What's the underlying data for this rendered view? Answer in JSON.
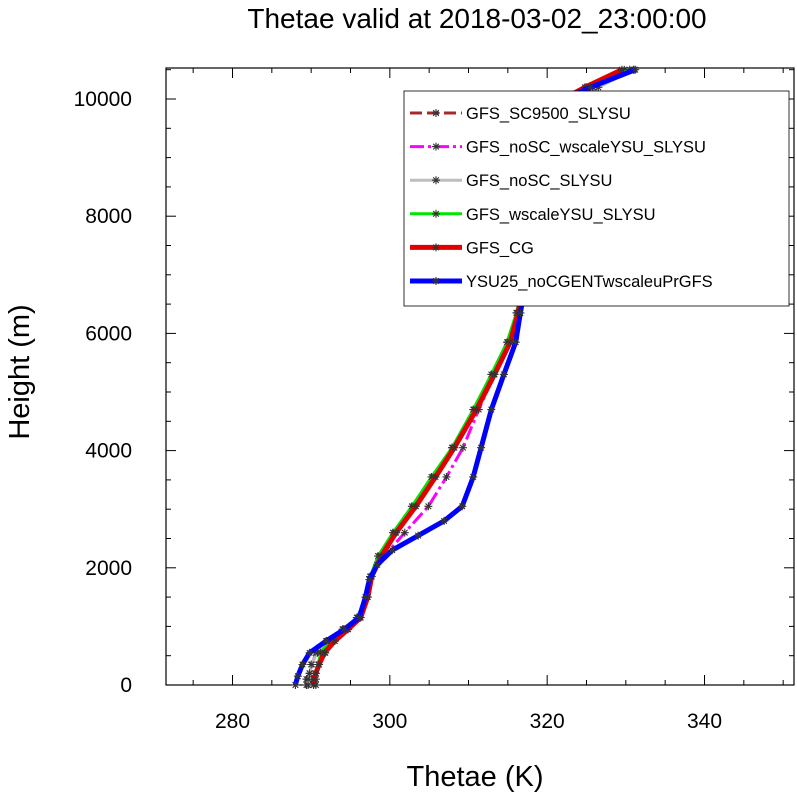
{
  "chart_data": {
    "type": "line",
    "title": "Thetae valid at 2018-03-02_23:00:00",
    "xlabel": "Thetae (K)",
    "ylabel": "Height (m)",
    "xlim": [
      270,
      350
    ],
    "ylim": [
      0,
      10500
    ],
    "xticks": [
      280,
      300,
      320,
      340
    ],
    "yticks": [
      0,
      2000,
      4000,
      6000,
      8000,
      10000
    ],
    "legend_position": "top-right",
    "series": [
      {
        "name": "GFS_SC9500_SLYSU",
        "color": "#a52a2a",
        "dash": "dashed",
        "width": 3,
        "points": [
          [
            290.6,
            0
          ],
          [
            290.6,
            100
          ],
          [
            290.5,
            200
          ],
          [
            291.0,
            350
          ],
          [
            291.8,
            550
          ],
          [
            293.0,
            750
          ],
          [
            294.6,
            950
          ],
          [
            296.2,
            1150
          ],
          [
            297.1,
            1500
          ],
          [
            297.6,
            1850
          ],
          [
            298.8,
            2200
          ],
          [
            300.7,
            2600
          ],
          [
            303.1,
            3050
          ],
          [
            305.6,
            3550
          ],
          [
            308.0,
            4050
          ],
          [
            310.8,
            4700
          ],
          [
            313.2,
            5300
          ],
          [
            315.3,
            5850
          ],
          [
            316.3,
            6350
          ],
          [
            317.2,
            6900
          ],
          [
            317.9,
            7500
          ],
          [
            318.6,
            8200
          ],
          [
            319.6,
            8950
          ],
          [
            320.2,
            9600
          ],
          [
            321.5,
            9950
          ],
          [
            325.0,
            10200
          ],
          [
            329.8,
            10500
          ]
        ]
      },
      {
        "name": "GFS_noSC_wscaleYSU_SLYSU",
        "color": "#ff00ff",
        "dash": "dashdot",
        "width": 3,
        "points": [
          [
            289.4,
            0
          ],
          [
            289.4,
            100
          ],
          [
            289.8,
            200
          ],
          [
            290.1,
            350
          ],
          [
            290.6,
            550
          ],
          [
            292.0,
            750
          ],
          [
            294.0,
            950
          ],
          [
            295.9,
            1150
          ],
          [
            297.0,
            1500
          ],
          [
            297.6,
            1850
          ],
          [
            299.3,
            2200
          ],
          [
            301.9,
            2600
          ],
          [
            304.9,
            3050
          ],
          [
            307.2,
            3550
          ],
          [
            309.3,
            4050
          ],
          [
            311.3,
            4700
          ],
          [
            313.3,
            5300
          ],
          [
            315.0,
            5850
          ],
          [
            316.2,
            6350
          ],
          [
            317.0,
            6900
          ],
          [
            317.7,
            7500
          ],
          [
            318.5,
            8200
          ],
          [
            319.4,
            8950
          ],
          [
            320.0,
            9600
          ],
          [
            322.0,
            9950
          ],
          [
            326.0,
            10200
          ],
          [
            331.0,
            10500
          ]
        ]
      },
      {
        "name": "GFS_noSC_SLYSU",
        "color": "#bebebe",
        "dash": "solid",
        "width": 3,
        "points": [
          [
            289.6,
            0
          ],
          [
            289.6,
            100
          ],
          [
            289.8,
            200
          ],
          [
            290.0,
            350
          ],
          [
            290.8,
            550
          ],
          [
            292.1,
            750
          ],
          [
            294.0,
            950
          ],
          [
            295.8,
            1150
          ],
          [
            297.0,
            1500
          ],
          [
            297.5,
            1850
          ],
          [
            298.7,
            2200
          ],
          [
            300.6,
            2600
          ],
          [
            303.0,
            3050
          ],
          [
            305.5,
            3550
          ],
          [
            308.0,
            4050
          ],
          [
            310.7,
            4700
          ],
          [
            313.1,
            5300
          ],
          [
            315.1,
            5850
          ],
          [
            316.1,
            6350
          ],
          [
            317.0,
            6900
          ],
          [
            317.8,
            7500
          ],
          [
            318.6,
            8200
          ],
          [
            319.5,
            8950
          ],
          [
            320.3,
            9600
          ],
          [
            322.2,
            9950
          ],
          [
            326.5,
            10200
          ],
          [
            331.0,
            10500
          ]
        ]
      },
      {
        "name": "GFS_wscaleYSU_SLYSU",
        "color": "#00e600",
        "dash": "solid",
        "width": 3,
        "points": [
          [
            290.3,
            0
          ],
          [
            290.3,
            100
          ],
          [
            290.5,
            200
          ],
          [
            290.9,
            350
          ],
          [
            291.2,
            550
          ],
          [
            292.3,
            750
          ],
          [
            294.1,
            950
          ],
          [
            295.9,
            1150
          ],
          [
            297.0,
            1500
          ],
          [
            297.5,
            1850
          ],
          [
            298.5,
            2200
          ],
          [
            300.4,
            2600
          ],
          [
            302.8,
            3050
          ],
          [
            305.3,
            3550
          ],
          [
            307.9,
            4050
          ],
          [
            310.6,
            4700
          ],
          [
            312.9,
            5300
          ],
          [
            314.9,
            5850
          ],
          [
            316.1,
            6350
          ],
          [
            317.0,
            6900
          ],
          [
            317.8,
            7500
          ],
          [
            318.6,
            8200
          ],
          [
            319.5,
            8950
          ],
          [
            320.1,
            9600
          ],
          [
            321.8,
            9950
          ],
          [
            325.8,
            10200
          ],
          [
            330.5,
            10500
          ]
        ]
      },
      {
        "name": "GFS_CG",
        "color": "#e00000",
        "dash": "solid",
        "width": 5,
        "points": [
          [
            290.3,
            0
          ],
          [
            290.3,
            100
          ],
          [
            290.6,
            200
          ],
          [
            291.0,
            350
          ],
          [
            291.7,
            550
          ],
          [
            293.0,
            750
          ],
          [
            294.7,
            950
          ],
          [
            296.3,
            1150
          ],
          [
            297.2,
            1500
          ],
          [
            297.7,
            1850
          ],
          [
            298.9,
            2200
          ],
          [
            300.8,
            2600
          ],
          [
            303.3,
            3050
          ],
          [
            305.8,
            3550
          ],
          [
            308.2,
            4050
          ],
          [
            311.0,
            4700
          ],
          [
            313.3,
            5300
          ],
          [
            315.3,
            5850
          ],
          [
            316.3,
            6350
          ],
          [
            317.1,
            6900
          ],
          [
            317.8,
            7500
          ],
          [
            318.5,
            8200
          ],
          [
            319.4,
            8950
          ],
          [
            320.0,
            9600
          ],
          [
            321.3,
            9950
          ],
          [
            324.8,
            10200
          ],
          [
            329.5,
            10500
          ]
        ]
      },
      {
        "name": "YSU25_noCGENTwscaleuPrGFS",
        "color": "#0000ff",
        "dash": "solid",
        "width": 5,
        "points": [
          [
            288.0,
            0
          ],
          [
            288.3,
            150
          ],
          [
            288.9,
            350
          ],
          [
            289.8,
            550
          ],
          [
            291.9,
            750
          ],
          [
            294.2,
            950
          ],
          [
            296.1,
            1150
          ],
          [
            296.9,
            1500
          ],
          [
            297.4,
            1800
          ],
          [
            298.4,
            2050
          ],
          [
            300.3,
            2300
          ],
          [
            303.6,
            2550
          ],
          [
            306.9,
            2800
          ],
          [
            309.2,
            3050
          ],
          [
            310.6,
            3550
          ],
          [
            311.6,
            4050
          ],
          [
            312.9,
            4700
          ],
          [
            314.5,
            5300
          ],
          [
            316.0,
            5850
          ],
          [
            316.6,
            6350
          ],
          [
            317.3,
            6900
          ],
          [
            317.9,
            7500
          ],
          [
            318.3,
            8200
          ],
          [
            318.7,
            8950
          ],
          [
            319.2,
            9600
          ],
          [
            321.3,
            9950
          ],
          [
            325.5,
            10200
          ],
          [
            331.2,
            10500
          ]
        ]
      }
    ]
  }
}
